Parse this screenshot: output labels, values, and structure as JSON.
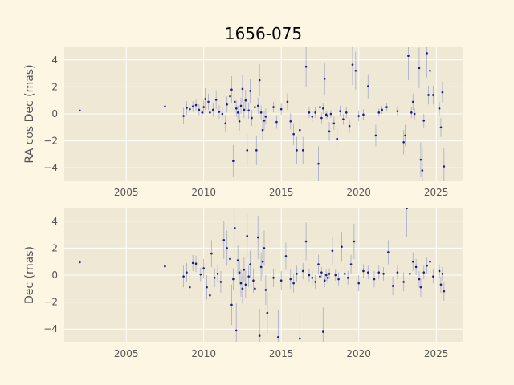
{
  "chart_data": {
    "type": "scatter",
    "title": "1656-075",
    "colors": {
      "figure_bg": "#fdf6e3",
      "axes_bg": "#eee8d5",
      "grid": "#ffffff",
      "point": "#1c1c8c",
      "errorbar": "#9aa0c8"
    },
    "panels": [
      {
        "id": "ra",
        "ylabel": "RA cos Dec (mas)",
        "xlim": [
          2001.0,
          2026.7
        ],
        "ylim": [
          -5.0,
          5.0
        ],
        "xticks": [
          2005,
          2010,
          2015,
          2020,
          2025
        ],
        "yticks": [
          -4,
          -2,
          0,
          2,
          4
        ],
        "show_xtick_labels": true,
        "points": [
          [
            2002.0,
            0.25,
            0.2
          ],
          [
            2007.5,
            0.55,
            0.2
          ],
          [
            2008.7,
            -0.15,
            0.6
          ],
          [
            2008.9,
            0.45,
            0.5
          ],
          [
            2009.1,
            0.35,
            0.5
          ],
          [
            2009.3,
            0.55,
            0.4
          ],
          [
            2009.5,
            0.65,
            0.4
          ],
          [
            2009.7,
            0.3,
            0.4
          ],
          [
            2009.9,
            0.1,
            0.3
          ],
          [
            2010.0,
            0.5,
            0.5
          ],
          [
            2010.1,
            1.1,
            0.8
          ],
          [
            2010.3,
            0.9,
            0.6
          ],
          [
            2010.4,
            0.1,
            0.5
          ],
          [
            2010.6,
            0.3,
            0.5
          ],
          [
            2010.8,
            1.05,
            0.7
          ],
          [
            2011.0,
            0.15,
            0.5
          ],
          [
            2011.2,
            0.0,
            0.5
          ],
          [
            2011.4,
            -0.7,
            0.6
          ],
          [
            2011.5,
            0.7,
            0.6
          ],
          [
            2011.7,
            1.3,
            0.9
          ],
          [
            2011.8,
            1.8,
            1.0
          ],
          [
            2011.9,
            -3.5,
            1.2
          ],
          [
            2012.0,
            0.9,
            0.8
          ],
          [
            2012.1,
            0.4,
            0.6
          ],
          [
            2012.2,
            0.1,
            0.5
          ],
          [
            2012.3,
            -0.55,
            0.7
          ],
          [
            2012.4,
            0.6,
            0.6
          ],
          [
            2012.5,
            1.85,
            1.0
          ],
          [
            2012.6,
            0.3,
            0.6
          ],
          [
            2012.7,
            1.0,
            0.8
          ],
          [
            2012.8,
            -2.7,
            1.2
          ],
          [
            2012.9,
            0.25,
            0.6
          ],
          [
            2013.0,
            1.7,
            0.9
          ],
          [
            2013.1,
            -0.3,
            0.6
          ],
          [
            2013.3,
            0.5,
            0.6
          ],
          [
            2013.4,
            -2.7,
            1.1
          ],
          [
            2013.5,
            0.6,
            0.6
          ],
          [
            2013.6,
            2.5,
            1.2
          ],
          [
            2013.7,
            0.1,
            0.5
          ],
          [
            2013.8,
            -1.2,
            0.8
          ],
          [
            2013.9,
            -0.5,
            0.7
          ],
          [
            2014.0,
            -0.2,
            0.6
          ],
          [
            2014.5,
            0.5,
            0.4
          ],
          [
            2014.7,
            -0.6,
            0.5
          ],
          [
            2015.0,
            0.35,
            0.4
          ],
          [
            2015.4,
            0.9,
            0.6
          ],
          [
            2015.6,
            -0.55,
            0.6
          ],
          [
            2015.8,
            -1.5,
            0.8
          ],
          [
            2016.0,
            -2.7,
            1.0
          ],
          [
            2016.2,
            -1.2,
            0.8
          ],
          [
            2016.4,
            -2.7,
            1.0
          ],
          [
            2016.6,
            3.5,
            1.5
          ],
          [
            2016.8,
            0.1,
            0.4
          ],
          [
            2017.0,
            -0.2,
            0.4
          ],
          [
            2017.2,
            0.1,
            0.4
          ],
          [
            2017.4,
            -3.7,
            1.3
          ],
          [
            2017.5,
            0.5,
            0.5
          ],
          [
            2017.6,
            -0.3,
            0.4
          ],
          [
            2017.7,
            0.4,
            0.4
          ],
          [
            2017.8,
            2.6,
            1.2
          ],
          [
            2017.9,
            -0.05,
            0.3
          ],
          [
            2018.0,
            -0.15,
            0.3
          ],
          [
            2018.1,
            -1.3,
            0.7
          ],
          [
            2018.2,
            0.0,
            0.3
          ],
          [
            2018.4,
            -0.7,
            0.5
          ],
          [
            2018.6,
            -1.85,
            0.8
          ],
          [
            2018.8,
            0.2,
            0.4
          ],
          [
            2019.0,
            -0.4,
            0.4
          ],
          [
            2019.2,
            0.1,
            0.4
          ],
          [
            2019.4,
            -0.9,
            0.5
          ],
          [
            2019.6,
            3.65,
            1.5
          ],
          [
            2019.8,
            3.2,
            1.4
          ],
          [
            2020.0,
            -0.15,
            0.4
          ],
          [
            2020.3,
            -0.05,
            0.4
          ],
          [
            2020.6,
            2.05,
            0.9
          ],
          [
            2021.1,
            -1.6,
            0.8
          ],
          [
            2021.3,
            0.1,
            0.3
          ],
          [
            2021.5,
            0.3,
            0.3
          ],
          [
            2021.8,
            0.5,
            0.3
          ],
          [
            2022.5,
            0.2,
            0.3
          ],
          [
            2022.9,
            -2.1,
            0.9
          ],
          [
            2023.0,
            -1.6,
            0.8
          ],
          [
            2023.2,
            4.3,
            1.8
          ],
          [
            2023.4,
            0.1,
            0.4
          ],
          [
            2023.5,
            0.9,
            0.6
          ],
          [
            2023.6,
            0.0,
            0.4
          ],
          [
            2023.9,
            3.4,
            1.5
          ],
          [
            2024.0,
            -3.4,
            1.3
          ],
          [
            2024.1,
            -4.2,
            1.6
          ],
          [
            2024.2,
            -0.5,
            0.5
          ],
          [
            2024.4,
            4.5,
            1.8
          ],
          [
            2024.5,
            1.4,
            0.7
          ],
          [
            2024.6,
            3.2,
            1.4
          ],
          [
            2024.8,
            1.4,
            0.7
          ],
          [
            2025.2,
            0.4,
            0.5
          ],
          [
            2025.3,
            -1.0,
            0.7
          ],
          [
            2025.4,
            1.6,
            0.8
          ],
          [
            2025.5,
            -3.9,
            1.4
          ]
        ]
      },
      {
        "id": "dec",
        "ylabel": "Dec (mas)",
        "xlim": [
          2001.0,
          2026.7
        ],
        "ylim": [
          -5.0,
          5.0
        ],
        "xticks": [
          2005,
          2010,
          2015,
          2020,
          2025
        ],
        "yticks": [
          -4,
          -2,
          0,
          2,
          4
        ],
        "show_xtick_labels": true,
        "points": [
          [
            2002.0,
            0.95,
            0.2
          ],
          [
            2007.5,
            0.65,
            0.2
          ],
          [
            2008.7,
            -0.1,
            0.8
          ],
          [
            2008.9,
            0.2,
            0.7
          ],
          [
            2009.1,
            -0.9,
            0.8
          ],
          [
            2009.3,
            0.9,
            0.6
          ],
          [
            2009.5,
            0.85,
            0.6
          ],
          [
            2009.8,
            0.05,
            0.5
          ],
          [
            2010.0,
            0.5,
            0.7
          ],
          [
            2010.2,
            -0.9,
            0.9
          ],
          [
            2010.4,
            -1.5,
            1.1
          ],
          [
            2010.5,
            1.6,
            1.0
          ],
          [
            2010.7,
            -0.2,
            0.7
          ],
          [
            2010.9,
            0.1,
            0.6
          ],
          [
            2011.1,
            -0.5,
            0.8
          ],
          [
            2011.3,
            2.6,
            1.4
          ],
          [
            2011.5,
            2.0,
            1.3
          ],
          [
            2011.7,
            1.2,
            1.0
          ],
          [
            2011.8,
            -2.2,
            1.5
          ],
          [
            2011.9,
            -0.3,
            0.8
          ],
          [
            2012.0,
            3.5,
            1.8
          ],
          [
            2012.1,
            -4.1,
            2.0
          ],
          [
            2012.2,
            1.1,
            1.1
          ],
          [
            2012.3,
            0.2,
            0.9
          ],
          [
            2012.4,
            -0.6,
            1.0
          ],
          [
            2012.5,
            -1.0,
            1.1
          ],
          [
            2012.6,
            0.4,
            0.9
          ],
          [
            2012.7,
            -0.7,
            1.0
          ],
          [
            2012.8,
            2.9,
            1.6
          ],
          [
            2012.9,
            -0.1,
            0.8
          ],
          [
            2013.0,
            0.8,
            1.0
          ],
          [
            2013.2,
            -0.4,
            0.9
          ],
          [
            2013.3,
            -1.0,
            1.1
          ],
          [
            2013.5,
            2.8,
            1.6
          ],
          [
            2013.6,
            -4.5,
            2.0
          ],
          [
            2013.7,
            0.6,
            1.0
          ],
          [
            2013.8,
            1.0,
            1.1
          ],
          [
            2013.9,
            2.0,
            1.3
          ],
          [
            2014.0,
            -1.1,
            1.1
          ],
          [
            2014.1,
            -2.8,
            1.5
          ],
          [
            2014.5,
            -0.2,
            0.7
          ],
          [
            2014.8,
            -4.6,
            2.0
          ],
          [
            2015.0,
            -0.4,
            0.7
          ],
          [
            2015.3,
            1.4,
            1.0
          ],
          [
            2015.6,
            -0.3,
            0.7
          ],
          [
            2015.8,
            -0.6,
            0.7
          ],
          [
            2016.0,
            0.1,
            0.6
          ],
          [
            2016.2,
            -4.7,
            2.0
          ],
          [
            2016.4,
            0.3,
            0.6
          ],
          [
            2016.6,
            2.5,
            1.4
          ],
          [
            2016.8,
            0.0,
            0.5
          ],
          [
            2017.0,
            -0.2,
            0.5
          ],
          [
            2017.2,
            -0.5,
            0.5
          ],
          [
            2017.4,
            0.8,
            0.7
          ],
          [
            2017.5,
            -0.1,
            0.4
          ],
          [
            2017.6,
            0.2,
            0.4
          ],
          [
            2017.7,
            -4.2,
            1.8
          ],
          [
            2017.8,
            -0.4,
            0.5
          ],
          [
            2017.9,
            0.0,
            0.4
          ],
          [
            2018.0,
            -0.2,
            0.4
          ],
          [
            2018.1,
            0.1,
            0.4
          ],
          [
            2018.3,
            1.8,
            1.0
          ],
          [
            2018.5,
            0.0,
            0.4
          ],
          [
            2018.7,
            -0.3,
            0.5
          ],
          [
            2018.9,
            2.1,
            1.1
          ],
          [
            2019.1,
            0.1,
            0.5
          ],
          [
            2019.3,
            -0.2,
            0.5
          ],
          [
            2019.5,
            0.8,
            0.7
          ],
          [
            2019.7,
            2.5,
            1.3
          ],
          [
            2020.0,
            -0.6,
            0.6
          ],
          [
            2020.3,
            0.3,
            0.5
          ],
          [
            2020.6,
            0.2,
            0.5
          ],
          [
            2021.0,
            -0.3,
            0.6
          ],
          [
            2021.3,
            0.2,
            0.5
          ],
          [
            2021.6,
            0.1,
            0.5
          ],
          [
            2021.9,
            1.7,
            0.9
          ],
          [
            2022.2,
            -0.8,
            0.7
          ],
          [
            2022.5,
            0.2,
            0.5
          ],
          [
            2022.9,
            -0.5,
            0.7
          ],
          [
            2023.1,
            5.0,
            2.2
          ],
          [
            2023.3,
            0.1,
            0.5
          ],
          [
            2023.5,
            1.0,
            0.7
          ],
          [
            2023.7,
            0.6,
            0.6
          ],
          [
            2023.9,
            -0.3,
            0.6
          ],
          [
            2024.0,
            -0.9,
            0.7
          ],
          [
            2024.2,
            0.2,
            0.5
          ],
          [
            2024.4,
            0.7,
            0.6
          ],
          [
            2024.6,
            1.0,
            0.7
          ],
          [
            2024.8,
            -0.1,
            0.5
          ],
          [
            2025.2,
            0.3,
            0.5
          ],
          [
            2025.3,
            -0.7,
            0.6
          ],
          [
            2025.4,
            0.1,
            0.5
          ],
          [
            2025.5,
            -1.2,
            0.7
          ]
        ]
      }
    ]
  }
}
